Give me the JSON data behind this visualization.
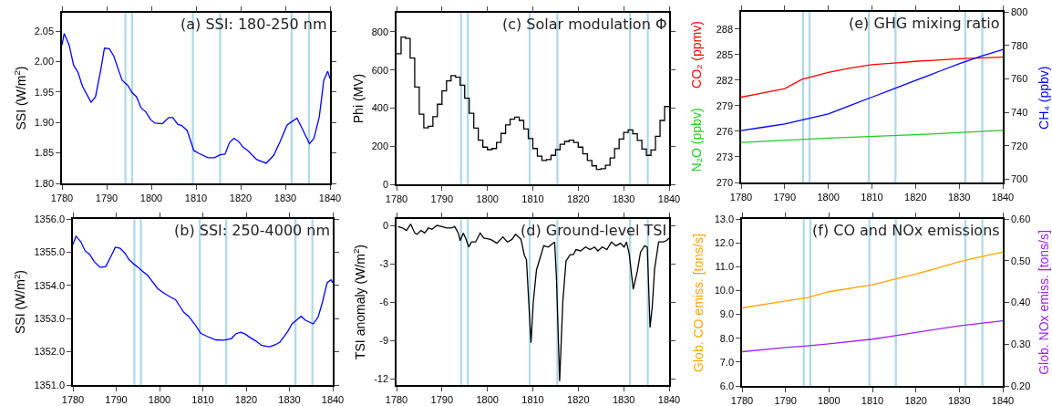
{
  "chart_data": [
    {
      "type": "line",
      "title": "(a) SSI: 180-250 nm",
      "ylabel": "SSI (W/m$^{2}$)",
      "xlim": [
        1780,
        1840
      ],
      "xticks": [
        1780,
        1790,
        1800,
        1810,
        1820,
        1830,
        1840
      ],
      "ylim": [
        1.8,
        2.08
      ],
      "yticks": [
        {
          "value": 1.8,
          "label": "1.80"
        },
        1.85,
        {
          "value": 1.9,
          "label": "1.90"
        },
        1.95,
        {
          "value": 2.0,
          "label": "2.00"
        },
        2.05
      ],
      "grid": false,
      "ref_lines": [
        {
          "axis": "x",
          "value": 1794.2,
          "color": "#add8e6"
        },
        {
          "axis": "x",
          "value": 1795.7,
          "color": "#add8e6"
        },
        {
          "axis": "x",
          "value": 1809.3,
          "color": "#add8e6"
        },
        {
          "axis": "x",
          "value": 1815.4,
          "color": "#add8e6"
        },
        {
          "axis": "x",
          "value": 1831.4,
          "color": "#add8e6"
        },
        {
          "axis": "x",
          "value": 1835.3,
          "color": "#add8e6"
        }
      ],
      "series": [
        {
          "color": "#0000ff",
          "x": [
            1780.0,
            1780.5,
            1781.6,
            1782.6,
            1783.6,
            1784.6,
            1786.5,
            1787.5,
            1788.7,
            1789.5,
            1790.6,
            1791.6,
            1792.6,
            1793.5,
            1794.7,
            1795.7,
            1796.7,
            1797.7,
            1798.8,
            1799.8,
            1800.8,
            1802.5,
            1803.9,
            1804.8,
            1805.9,
            1806.8,
            1808.0,
            1808.6,
            1809.5,
            1810.7,
            1812.7,
            1814.1,
            1815.4,
            1816.5,
            1817.5,
            1818.5,
            1819.5,
            1820.6,
            1821.6,
            1823.6,
            1825.7,
            1827.4,
            1828.8,
            1830.4,
            1831.6,
            1832.6,
            1833.9,
            1835.4,
            1836.4,
            1837.6,
            1838.6,
            1839.5,
            1840.0
          ],
          "values": [
            2.027,
            2.046,
            2.027,
            1.994,
            1.982,
            1.959,
            1.933,
            1.942,
            1.987,
            2.022,
            2.021,
            2.009,
            1.987,
            1.969,
            1.961,
            1.949,
            1.942,
            1.924,
            1.917,
            1.905,
            1.899,
            1.898,
            1.908,
            1.908,
            1.897,
            1.895,
            1.887,
            1.874,
            1.854,
            1.849,
            1.842,
            1.842,
            1.847,
            1.848,
            1.867,
            1.874,
            1.869,
            1.859,
            1.854,
            1.839,
            1.833,
            1.846,
            1.868,
            1.896,
            1.902,
            1.907,
            1.888,
            1.865,
            1.874,
            1.909,
            1.969,
            1.984,
            1.972
          ]
        }
      ]
    },
    {
      "type": "step",
      "title": "(c) Solar modulation Φ",
      "ylabel": "Phi (MV)",
      "xlim": [
        1780,
        1840
      ],
      "xticks": [
        1780,
        1790,
        1800,
        1810,
        1820,
        1830,
        1840
      ],
      "ylim": [
        0,
        900
      ],
      "yticks": [
        0,
        200,
        400,
        600,
        800
      ],
      "grid": false,
      "ref_lines": [
        {
          "axis": "x",
          "value": 1794.2,
          "color": "#add8e6"
        },
        {
          "axis": "x",
          "value": 1795.7,
          "color": "#add8e6"
        },
        {
          "axis": "x",
          "value": 1809.3,
          "color": "#add8e6"
        },
        {
          "axis": "x",
          "value": 1815.4,
          "color": "#add8e6"
        },
        {
          "axis": "x",
          "value": 1831.4,
          "color": "#add8e6"
        },
        {
          "axis": "x",
          "value": 1835.3,
          "color": "#add8e6"
        }
      ],
      "x": [
        1780,
        1781,
        1782,
        1783,
        1784,
        1785,
        1786,
        1787,
        1788,
        1789,
        1790,
        1791,
        1792,
        1793,
        1794,
        1795,
        1796,
        1797,
        1798,
        1799,
        1800,
        1801,
        1802,
        1803,
        1804,
        1805,
        1806,
        1807,
        1808,
        1809,
        1810,
        1811,
        1812,
        1813,
        1814,
        1815,
        1816,
        1817,
        1818,
        1819,
        1820,
        1821,
        1822,
        1823,
        1824,
        1825,
        1826,
        1827,
        1828,
        1829,
        1830,
        1831,
        1832,
        1833,
        1834,
        1835,
        1836,
        1837,
        1838,
        1839,
        1840
      ],
      "series": [
        {
          "color": "#000000",
          "values": [
            685,
            773,
            765,
            662,
            510,
            368,
            296,
            305,
            355,
            420,
            490,
            543,
            570,
            562,
            520,
            452,
            373,
            295,
            232,
            195,
            182,
            188,
            220,
            267,
            312,
            342,
            352,
            335,
            290,
            240,
            188,
            148,
            125,
            130,
            152,
            182,
            210,
            225,
            232,
            220,
            195,
            160,
            125,
            97,
            78,
            82,
            100,
            138,
            187,
            238,
            272,
            285,
            265,
            230,
            185,
            152,
            180,
            252,
            335,
            408,
            408
          ]
        }
      ]
    },
    {
      "type": "line",
      "title": "(e) GHG mixing ratio",
      "xlim": [
        1780,
        1840
      ],
      "xticks": [
        1780,
        1790,
        1800,
        1810,
        1820,
        1830,
        1840
      ],
      "ylim": [
        270,
        290
      ],
      "yticks": [
        270,
        273,
        276,
        279,
        282,
        285,
        288
      ],
      "y2lim": [
        698,
        800
      ],
      "y2ticks": [
        700,
        720,
        740,
        760,
        780,
        800
      ],
      "grid": false,
      "ref_lines": [
        {
          "axis": "x",
          "value": 1794.2,
          "color": "#add8e6"
        },
        {
          "axis": "x",
          "value": 1795.7,
          "color": "#add8e6"
        },
        {
          "axis": "x",
          "value": 1809.3,
          "color": "#add8e6"
        },
        {
          "axis": "x",
          "value": 1815.4,
          "color": "#add8e6"
        },
        {
          "axis": "x",
          "value": 1831.4,
          "color": "#add8e6"
        },
        {
          "axis": "x",
          "value": 1835.3,
          "color": "#add8e6"
        }
      ],
      "series": [
        {
          "name": "CO₂ (ppmv)",
          "color": "#ff0000",
          "x": [
            1780,
            1785,
            1790,
            1794,
            1800,
            1805,
            1810,
            1815,
            1820,
            1830,
            1840
          ],
          "values": [
            280.0,
            280.5,
            281.0,
            282.1,
            282.9,
            283.4,
            283.8,
            284.0,
            284.2,
            284.5,
            284.7
          ]
        },
        {
          "name": "N₂O (ppbv)",
          "color": "#22cc22",
          "x": [
            1780,
            1800,
            1820,
            1840
          ],
          "values": [
            274.7,
            275.2,
            275.6,
            276.1
          ]
        },
        {
          "name": "CH₄ (ppbv)",
          "color": "#0000ff",
          "axis": "y2",
          "x": [
            1780,
            1785,
            1790,
            1795,
            1800,
            1805,
            1810,
            1815,
            1820,
            1825,
            1830,
            1835,
            1840
          ],
          "values": [
            729,
            731,
            733,
            736,
            739,
            744,
            749,
            754,
            759,
            764,
            769,
            773.5,
            777.5
          ]
        }
      ]
    },
    {
      "type": "line",
      "title": "(b) SSI: 250-4000 nm",
      "ylabel": "SSI (W/m$^{2}$)",
      "xlim": [
        1780,
        1840
      ],
      "xticks": [
        1780,
        1790,
        1800,
        1810,
        1820,
        1830,
        1840
      ],
      "ylim": [
        1351,
        1356
      ],
      "yticks": [
        {
          "value": 1351,
          "label": "1351.0"
        },
        {
          "value": 1352,
          "label": "1352.0"
        },
        {
          "value": 1353,
          "label": "1353.0"
        },
        {
          "value": 1354,
          "label": "1354.0"
        },
        {
          "value": 1355,
          "label": "1355.0"
        },
        {
          "value": 1356,
          "label": "1356.0"
        }
      ],
      "grid": false,
      "ref_lines": [
        {
          "axis": "x",
          "value": 1794.2,
          "color": "#add8e6"
        },
        {
          "axis": "x",
          "value": 1795.7,
          "color": "#add8e6"
        },
        {
          "axis": "x",
          "value": 1809.3,
          "color": "#add8e6"
        },
        {
          "axis": "x",
          "value": 1815.4,
          "color": "#add8e6"
        },
        {
          "axis": "x",
          "value": 1831.4,
          "color": "#add8e6"
        },
        {
          "axis": "x",
          "value": 1835.3,
          "color": "#add8e6"
        }
      ],
      "series": [
        {
          "color": "#0000ff",
          "x": [
            1780.0,
            1780.7,
            1781.8,
            1782.8,
            1783.9,
            1784.9,
            1786.3,
            1787.6,
            1788.8,
            1789.8,
            1790.9,
            1792.0,
            1793.0,
            1794.0,
            1795.1,
            1796.1,
            1797.2,
            1798.2,
            1799.6,
            1801.1,
            1802.5,
            1803.7,
            1804.6,
            1805.6,
            1806.7,
            1808.1,
            1809.5,
            1810.9,
            1813.0,
            1814.8,
            1816.6,
            1817.6,
            1818.7,
            1819.7,
            1820.8,
            1822.2,
            1823.6,
            1825.4,
            1826.7,
            1827.8,
            1829.6,
            1830.6,
            1831.6,
            1832.7,
            1833.7,
            1835.5,
            1836.6,
            1837.6,
            1838.7,
            1839.6,
            1840.0
          ],
          "values": [
            1355.23,
            1355.48,
            1355.32,
            1355.04,
            1354.93,
            1354.72,
            1354.54,
            1354.57,
            1354.88,
            1355.15,
            1355.12,
            1354.97,
            1354.77,
            1354.65,
            1354.54,
            1354.42,
            1354.31,
            1354.14,
            1353.9,
            1353.76,
            1353.65,
            1353.57,
            1353.39,
            1353.19,
            1353.07,
            1352.84,
            1352.56,
            1352.47,
            1352.36,
            1352.35,
            1352.4,
            1352.54,
            1352.59,
            1352.54,
            1352.44,
            1352.33,
            1352.19,
            1352.15,
            1352.21,
            1352.29,
            1352.61,
            1352.84,
            1352.95,
            1353.07,
            1352.95,
            1352.84,
            1353.04,
            1353.48,
            1354.08,
            1354.17,
            1354.08
          ]
        }
      ]
    },
    {
      "type": "line",
      "title": "(d) Ground-level TSI",
      "ylabel": "TSI anomaly (W/m$^{2}$)",
      "xlim": [
        1780,
        1840
      ],
      "xticks": [
        1780,
        1790,
        1800,
        1810,
        1820,
        1830,
        1840
      ],
      "ylim": [
        -12.5,
        0.5
      ],
      "yticks": [
        -12,
        -9,
        -6,
        -3,
        0
      ],
      "grid": false,
      "ref_lines": [
        {
          "axis": "x",
          "value": 1794.2,
          "color": "#add8e6"
        },
        {
          "axis": "x",
          "value": 1795.7,
          "color": "#add8e6"
        },
        {
          "axis": "x",
          "value": 1809.3,
          "color": "#add8e6"
        },
        {
          "axis": "x",
          "value": 1815.4,
          "color": "#add8e6"
        },
        {
          "axis": "x",
          "value": 1831.4,
          "color": "#add8e6"
        },
        {
          "axis": "x",
          "value": 1835.3,
          "color": "#add8e6"
        }
      ],
      "series": [
        {
          "color": "#000000",
          "x": [
            1780.3,
            1781.3,
            1782.2,
            1783.1,
            1784.0,
            1784.5,
            1785.4,
            1786.2,
            1787.0,
            1787.8,
            1788.9,
            1790.0,
            1791.0,
            1792.0,
            1792.8,
            1793.6,
            1794.0,
            1794.7,
            1795.2,
            1795.9,
            1796.5,
            1797.4,
            1798.4,
            1799.2,
            1800.7,
            1802.1,
            1803.4,
            1804.4,
            1805.4,
            1806.2,
            1807.4,
            1808.1,
            1808.6,
            1809.1,
            1809.6,
            1810.1,
            1810.8,
            1812.4,
            1813.4,
            1814.8,
            1815.2,
            1815.9,
            1816.6,
            1817.3,
            1818.2,
            1818.9,
            1819.5,
            1820.5,
            1821.6,
            1822.6,
            1823.6,
            1824.3,
            1825.3,
            1826.3,
            1827.3,
            1828.3,
            1829.3,
            1830.1,
            1830.6,
            1831.2,
            1832.1,
            1833.0,
            1833.7,
            1834.6,
            1835.2,
            1835.8,
            1836.3,
            1836.8,
            1837.7,
            1838.7,
            1839.4,
            1840.0
          ],
          "values": [
            -0.1,
            -0.2,
            -0.4,
            0.1,
            -0.6,
            -0.7,
            -0.4,
            -0.6,
            -0.2,
            -0.3,
            0.0,
            -0.1,
            -0.2,
            -0.2,
            -0.1,
            -0.6,
            -1.2,
            -0.6,
            -1.0,
            -1.7,
            -1.3,
            -1.3,
            -0.6,
            -1.0,
            -1.1,
            -1.4,
            -0.9,
            -1.3,
            -1.1,
            -0.7,
            -1.1,
            -2.3,
            -2.7,
            -6.0,
            -9.2,
            -6.0,
            -3.5,
            -1.6,
            -1.7,
            -1.3,
            -4.1,
            -12.2,
            -6.0,
            -2.8,
            -2.3,
            -2.3,
            -1.9,
            -2.0,
            -1.7,
            -1.9,
            -1.7,
            -2.0,
            -1.7,
            -1.9,
            -1.3,
            -1.6,
            -1.4,
            -1.7,
            -1.3,
            -2.2,
            -5.0,
            -3.6,
            -2.1,
            -1.6,
            -1.7,
            -8.0,
            -6.3,
            -3.4,
            -1.3,
            -1.3,
            -1.2,
            -1.0
          ]
        }
      ]
    },
    {
      "type": "line",
      "title": "(f) CO and NOx emissions",
      "xlim": [
        1780,
        1840
      ],
      "xticks": [
        1780,
        1790,
        1800,
        1810,
        1820,
        1830,
        1840
      ],
      "ylim": [
        6,
        13
      ],
      "yticks": [
        {
          "value": 6,
          "label": "6.0"
        },
        {
          "value": 7,
          "label": "7.0"
        },
        {
          "value": 8,
          "label": "8.0"
        },
        {
          "value": 9,
          "label": "9.0"
        },
        {
          "value": 10,
          "label": "10.0"
        },
        {
          "value": 11,
          "label": "11.0"
        },
        {
          "value": 12,
          "label": "12.0"
        },
        {
          "value": 13,
          "label": "13.0"
        }
      ],
      "y2lim": [
        0.2,
        0.6
      ],
      "y2ticks": [
        {
          "value": 0.2,
          "label": "0.20"
        },
        {
          "value": 0.3,
          "label": "0.30"
        },
        {
          "value": 0.4,
          "label": "0.40"
        },
        {
          "value": 0.5,
          "label": "0.50"
        },
        {
          "value": 0.6,
          "label": "0.60"
        }
      ],
      "grid": false,
      "ref_lines": [
        {
          "axis": "x",
          "value": 1794.2,
          "color": "#add8e6"
        },
        {
          "axis": "x",
          "value": 1795.7,
          "color": "#add8e6"
        },
        {
          "axis": "x",
          "value": 1809.3,
          "color": "#add8e6"
        },
        {
          "axis": "x",
          "value": 1815.4,
          "color": "#add8e6"
        },
        {
          "axis": "x",
          "value": 1831.4,
          "color": "#add8e6"
        },
        {
          "axis": "x",
          "value": 1835.3,
          "color": "#add8e6"
        }
      ],
      "series": [
        {
          "name": "Glob. CO emiss. [tons/s]",
          "color": "#ffa500",
          "x": [
            1780,
            1790,
            1795,
            1800,
            1810,
            1815,
            1820,
            1825,
            1830,
            1835,
            1840
          ],
          "values": [
            9.27,
            9.56,
            9.7,
            9.95,
            10.24,
            10.47,
            10.69,
            10.94,
            11.21,
            11.42,
            11.61
          ]
        },
        {
          "name": "Glob. NOx emiss. [tons/s]",
          "color": "#a020f0",
          "axis": "y2",
          "x": [
            1780,
            1790,
            1795,
            1800,
            1810,
            1815,
            1820,
            1830,
            1840
          ],
          "values": [
            0.282,
            0.292,
            0.296,
            0.301,
            0.312,
            0.32,
            0.328,
            0.344,
            0.356
          ]
        }
      ]
    }
  ]
}
